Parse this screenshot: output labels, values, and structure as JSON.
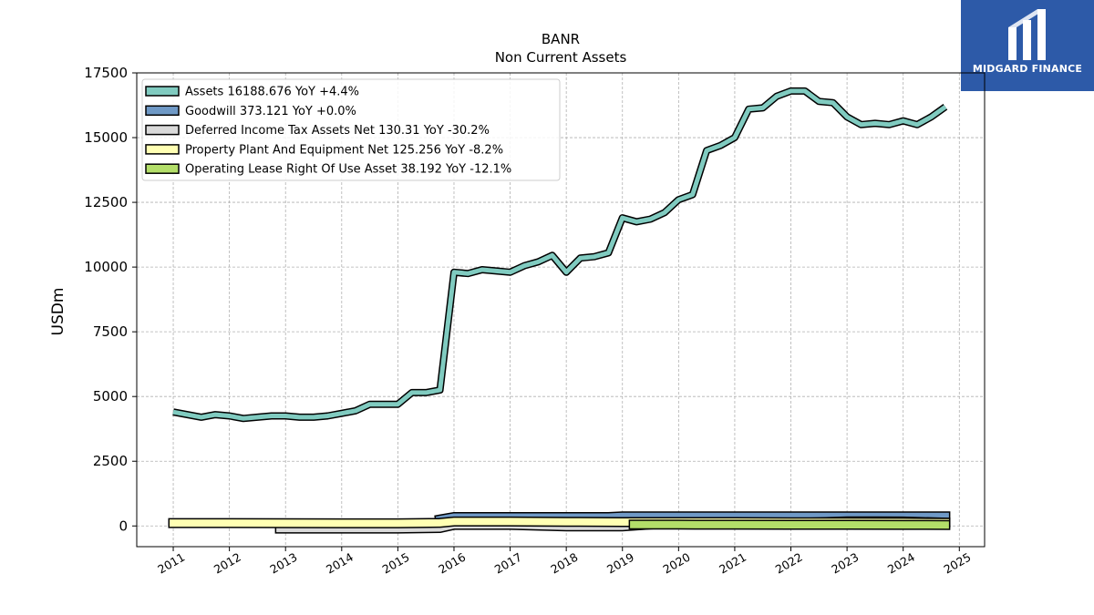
{
  "logo": {
    "text": "MIDGARD FINANCE"
  },
  "chart_data": {
    "type": "line",
    "title": "BANR",
    "subtitle": "Non Current  Assets",
    "ylabel": "USDm",
    "xlabel": "",
    "ylim": [
      -800,
      17500
    ],
    "xlim": [
      2010.35,
      2025.45
    ],
    "yticks": [
      0,
      2500,
      5000,
      7500,
      10000,
      12500,
      15000,
      17500
    ],
    "xticks": [
      2011,
      2012,
      2013,
      2014,
      2015,
      2016,
      2017,
      2018,
      2019,
      2020,
      2021,
      2022,
      2023,
      2024,
      2025
    ],
    "grid": true,
    "legend_position": "top-left",
    "series": [
      {
        "name": "Assets  16188.676 YoY +4.4%",
        "color": "#80cbc0",
        "x": [
          2011.0,
          2011.25,
          2011.5,
          2011.75,
          2012.0,
          2012.25,
          2012.5,
          2012.75,
          2013.0,
          2013.25,
          2013.5,
          2013.75,
          2014.0,
          2014.25,
          2014.5,
          2014.75,
          2015.0,
          2015.25,
          2015.5,
          2015.75,
          2016.0,
          2016.25,
          2016.5,
          2016.75,
          2017.0,
          2017.25,
          2017.5,
          2017.75,
          2018.0,
          2018.25,
          2018.5,
          2018.75,
          2019.0,
          2019.25,
          2019.5,
          2019.75,
          2020.0,
          2020.25,
          2020.5,
          2020.75,
          2021.0,
          2021.25,
          2021.5,
          2021.75,
          2022.0,
          2022.25,
          2022.5,
          2022.75,
          2023.0,
          2023.25,
          2023.5,
          2023.75,
          2024.0,
          2024.25,
          2024.5,
          2024.75
        ],
        "values": [
          4400,
          4300,
          4200,
          4300,
          4250,
          4150,
          4200,
          4250,
          4250,
          4200,
          4200,
          4250,
          4350,
          4450,
          4700,
          4700,
          4700,
          5150,
          5150,
          5250,
          9800,
          9750,
          9900,
          9850,
          9800,
          10050,
          10200,
          10450,
          9800,
          10350,
          10400,
          10550,
          11900,
          11750,
          11850,
          12100,
          12600,
          12800,
          14500,
          14700,
          15000,
          16100,
          16150,
          16600,
          16800,
          16800,
          16400,
          16350,
          15800,
          15500,
          15550,
          15500,
          15650,
          15500,
          15800,
          16188.676
        ]
      },
      {
        "name": "Goodwill  373.121 YoY +0.0%",
        "color": "#6f99c6",
        "x": [
          2015.75,
          2016.0,
          2016.5,
          2017.0,
          2017.5,
          2018.0,
          2018.5,
          2018.75,
          2019.0,
          2019.5,
          2020.0,
          2020.5,
          2021.0,
          2022.0,
          2023.0,
          2024.0,
          2024.75
        ],
        "values": [
          250,
          345,
          345,
          345,
          345,
          345,
          345,
          345,
          373,
          373,
          373,
          373,
          373,
          373,
          373,
          373,
          373.121
        ]
      },
      {
        "name": "Deferred Income Tax Assets Net  130.31 YoY -30.2%",
        "color": "#d9d9d9",
        "x": [
          2012.9,
          2013.5,
          2014.0,
          2014.5,
          2015.0,
          2015.75,
          2016.0,
          2017.0,
          2018.0,
          2019.0,
          2019.5,
          2020.0,
          2021.0,
          2022.0,
          2022.5,
          2023.0,
          2023.5,
          2024.0,
          2024.75
        ],
        "values": [
          -100,
          -100,
          -100,
          -100,
          -100,
          -80,
          40,
          40,
          -20,
          -20,
          60,
          100,
          100,
          120,
          140,
          180,
          180,
          170,
          130.31
        ]
      },
      {
        "name": "Property Plant And Equipment Net  125.256 YoY -8.2%",
        "color": "#ffffb3",
        "x": [
          2011.0,
          2012.0,
          2013.0,
          2014.0,
          2015.0,
          2015.75,
          2016.0,
          2017.0,
          2018.0,
          2019.0,
          2020.0,
          2021.0,
          2022.0,
          2023.0,
          2024.0,
          2024.75
        ],
        "values": [
          110,
          110,
          105,
          100,
          100,
          120,
          170,
          170,
          160,
          150,
          150,
          150,
          140,
          140,
          135,
          125.256
        ]
      },
      {
        "name": "Operating Lease Right Of Use Asset  38.192 YoY -12.1%",
        "color": "#b3de69",
        "x": [
          2019.2,
          2020.0,
          2021.0,
          2022.0,
          2023.0,
          2024.0,
          2024.75
        ],
        "values": [
          55,
          52,
          48,
          45,
          43,
          40,
          38.192
        ]
      }
    ]
  }
}
